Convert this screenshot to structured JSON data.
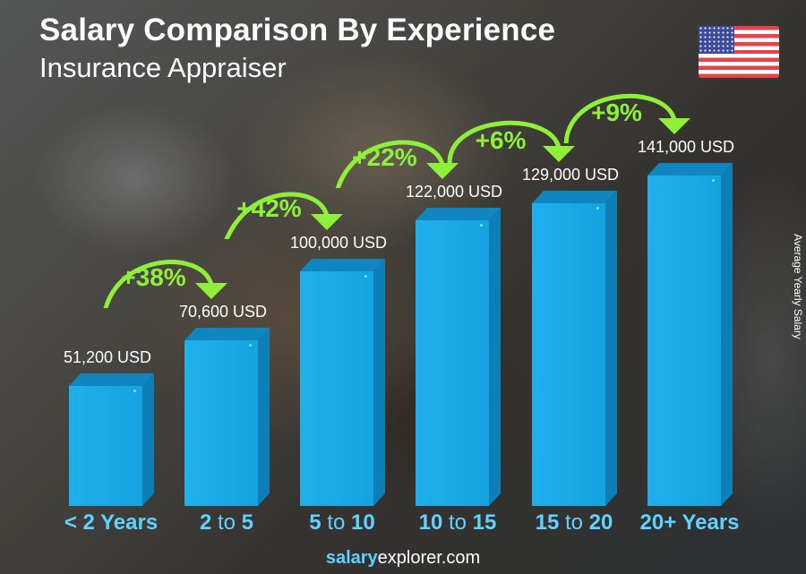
{
  "header": {
    "title": "Salary Comparison By Experience",
    "subtitle": "Insurance Appraiser",
    "flag": "us-flag-icon"
  },
  "y_axis_label": "Average Yearly Salary",
  "categories": [
    {
      "label": "< 2 Years",
      "parts": [
        "< 2 Years"
      ]
    },
    {
      "label": "2 to 5",
      "parts": [
        "2",
        " to ",
        "5"
      ]
    },
    {
      "label": "5 to 10",
      "parts": [
        "5",
        " to ",
        "10"
      ]
    },
    {
      "label": "10 to 15",
      "parts": [
        "10",
        " to ",
        "15"
      ]
    },
    {
      "label": "15 to 20",
      "parts": [
        "15",
        " to ",
        "20"
      ]
    },
    {
      "label": "20+ Years",
      "parts": [
        "20+ Years"
      ]
    }
  ],
  "value_labels": [
    "51,200 USD",
    "70,600 USD",
    "100,000 USD",
    "122,000 USD",
    "129,000 USD",
    "141,000 USD"
  ],
  "increases": [
    "+38%",
    "+42%",
    "+22%",
    "+6%",
    "+9%"
  ],
  "footer": {
    "bold": "salary",
    "regular": "explorer",
    "suffix": ".com"
  },
  "colors": {
    "bar": "#1ba9e6",
    "bar_top": "#0f86bf",
    "bar_side": "#0d7eb6",
    "increase": "#8ff03a",
    "category": "#5fd3ff"
  },
  "chart_data": {
    "type": "bar",
    "title": "Salary Comparison By Experience",
    "subtitle": "Insurance Appraiser",
    "categories": [
      "< 2 Years",
      "2 to 5",
      "5 to 10",
      "10 to 15",
      "15 to 20",
      "20+ Years"
    ],
    "values": [
      51200,
      70600,
      100000,
      122000,
      129000,
      141000
    ],
    "value_labels": [
      "51,200 USD",
      "70,600 USD",
      "100,000 USD",
      "122,000 USD",
      "129,000 USD",
      "141,000 USD"
    ],
    "annotations": [
      "+38%",
      "+42%",
      "+22%",
      "+6%",
      "+9%"
    ],
    "xlabel": "",
    "ylabel": "Average Yearly Salary",
    "units": "USD",
    "grid": false,
    "legend": null
  }
}
